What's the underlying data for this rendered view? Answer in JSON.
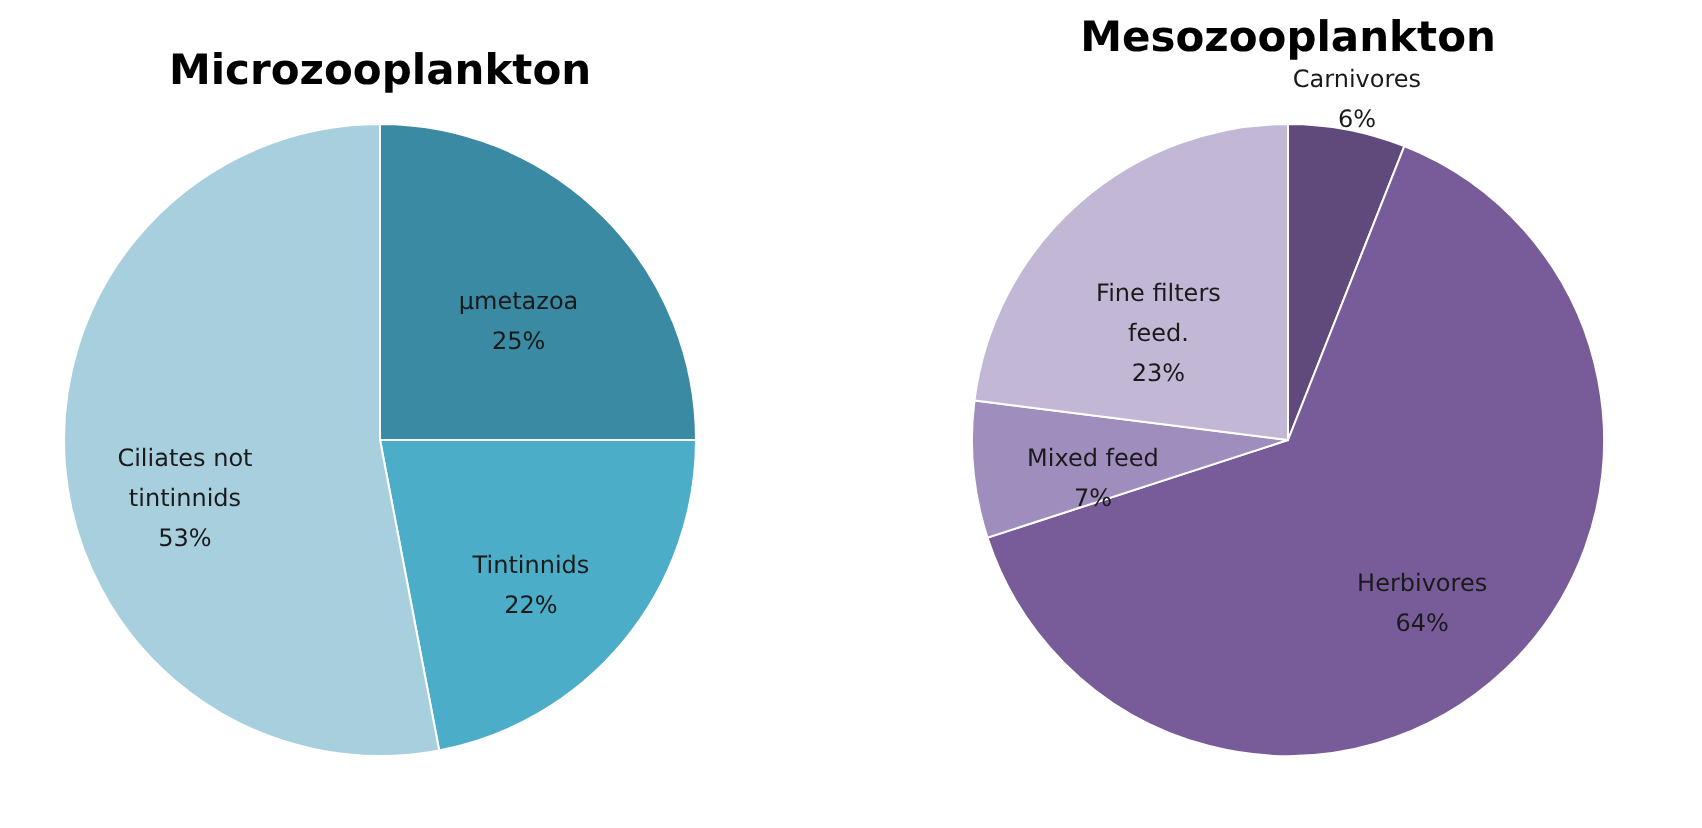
{
  "chart_data": [
    {
      "type": "pie",
      "title": "Microzooplankton",
      "categories": [
        "µmetazoa",
        "Tintinnids",
        "Ciliates not tintinnids"
      ],
      "values": [
        25,
        22,
        53
      ],
      "colors": [
        "#3a8aa3",
        "#4badc8",
        "#a7cfde"
      ],
      "value_labels": [
        "25%",
        "22%",
        "53%"
      ]
    },
    {
      "type": "pie",
      "title": "Mesozooplankton",
      "categories": [
        "Carnivores",
        "Herbivores",
        "Mixed feed",
        "Fine filters feed."
      ],
      "values": [
        6,
        64,
        7,
        23
      ],
      "colors": [
        "#604a7b",
        "#775c99",
        "#9e8dbd",
        "#c2b8d5"
      ],
      "value_labels": [
        "6%",
        "64%",
        "7%",
        "23%"
      ]
    }
  ]
}
